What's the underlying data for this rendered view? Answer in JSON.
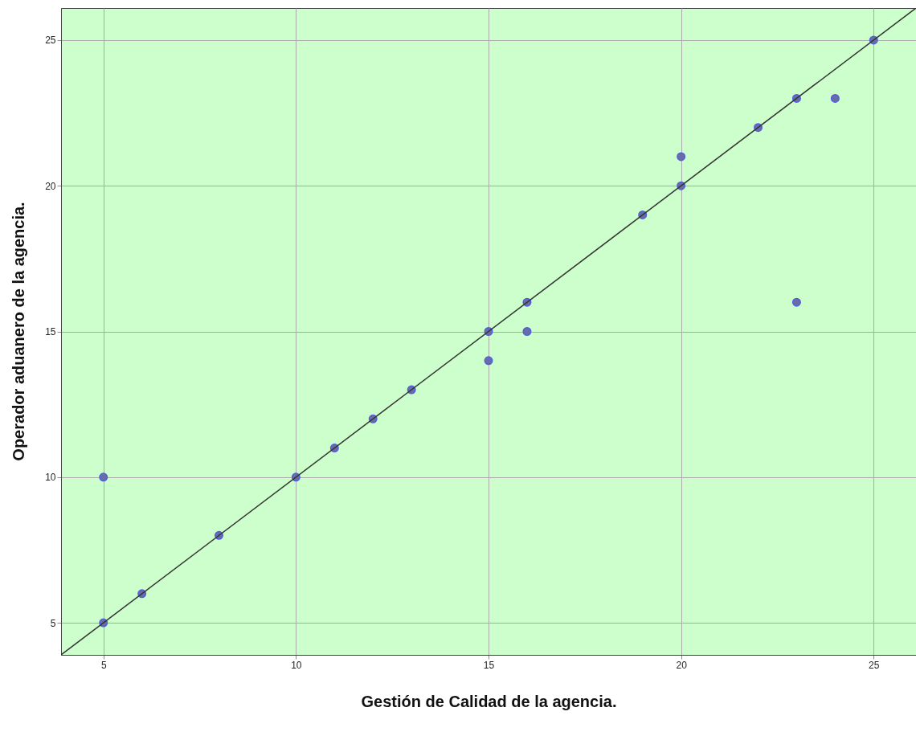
{
  "chart_data": {
    "type": "scatter",
    "xlabel": "Gestión de Calidad de la agencia.",
    "ylabel": "Operador aduanero de la agencia.",
    "xlim": [
      3.9,
      26.1
    ],
    "ylim": [
      3.9,
      26.1
    ],
    "xticks": [
      5,
      10,
      15,
      20,
      25
    ],
    "yticks": [
      5,
      10,
      15,
      20,
      25
    ],
    "grid": true,
    "marker": "circle",
    "series": [
      {
        "color": "#6b6ba8",
        "x": [
          5,
          5,
          6,
          8,
          10,
          11,
          12,
          13,
          15,
          15,
          16,
          16,
          19,
          20,
          20,
          22,
          23,
          23,
          24,
          25
        ],
        "values": [
          5,
          10,
          6,
          8,
          10,
          11,
          12,
          13,
          15,
          14,
          16,
          15,
          19,
          20,
          21,
          22,
          23,
          16,
          23,
          25
        ]
      },
      {
        "type": "line",
        "marker": "none",
        "color": "#333333",
        "x": [
          3.9,
          26.1
        ],
        "values": [
          3.9,
          26.1
        ]
      }
    ]
  }
}
